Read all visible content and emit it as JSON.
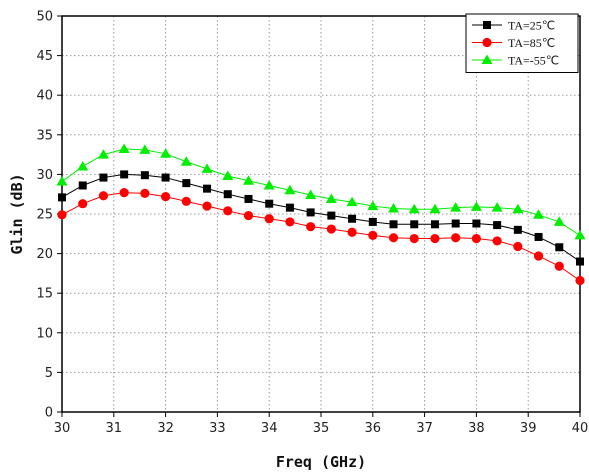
{
  "chart_data": {
    "type": "line",
    "title": "",
    "xlabel": "Freq (GHz)",
    "ylabel": "Glin (dB)",
    "xlim": [
      30,
      40
    ],
    "ylim": [
      0,
      50
    ],
    "xticks": [
      30,
      31,
      32,
      33,
      34,
      35,
      36,
      37,
      38,
      39,
      40
    ],
    "yticks": [
      0,
      5,
      10,
      15,
      20,
      25,
      30,
      35,
      40,
      45,
      50
    ],
    "grid": true,
    "legend_position": "top-right",
    "x": [
      30.0,
      30.4,
      30.8,
      31.2,
      31.6,
      32.0,
      32.4,
      32.8,
      33.2,
      33.6,
      34.0,
      34.4,
      34.8,
      35.2,
      35.6,
      36.0,
      36.4,
      36.8,
      37.2,
      37.6,
      38.0,
      38.4,
      38.8,
      39.2,
      39.6,
      40.0
    ],
    "series": [
      {
        "name": "TA=25℃",
        "color": "#000000",
        "marker": "square",
        "values": [
          27.1,
          28.6,
          29.6,
          30.0,
          29.9,
          29.6,
          28.9,
          28.2,
          27.5,
          26.9,
          26.3,
          25.8,
          25.2,
          24.8,
          24.4,
          24.0,
          23.7,
          23.7,
          23.7,
          23.8,
          23.8,
          23.6,
          23.0,
          22.1,
          20.8,
          19.0
        ]
      },
      {
        "name": "TA=85℃",
        "color": "#ff0000",
        "marker": "circle",
        "values": [
          24.9,
          26.3,
          27.3,
          27.7,
          27.6,
          27.2,
          26.6,
          26.0,
          25.4,
          24.8,
          24.4,
          24.0,
          23.4,
          23.1,
          22.7,
          22.3,
          22.0,
          21.9,
          21.9,
          22.0,
          21.9,
          21.6,
          20.9,
          19.7,
          18.4,
          16.6
        ]
      },
      {
        "name": "TA=-55℃",
        "color": "#00ee00",
        "marker": "triangle",
        "values": [
          29.1,
          31.0,
          32.5,
          33.2,
          33.1,
          32.6,
          31.6,
          30.7,
          29.8,
          29.2,
          28.6,
          28.0,
          27.4,
          26.9,
          26.5,
          26.0,
          25.7,
          25.6,
          25.6,
          25.8,
          25.9,
          25.8,
          25.6,
          24.9,
          24.0,
          22.3
        ]
      }
    ]
  }
}
